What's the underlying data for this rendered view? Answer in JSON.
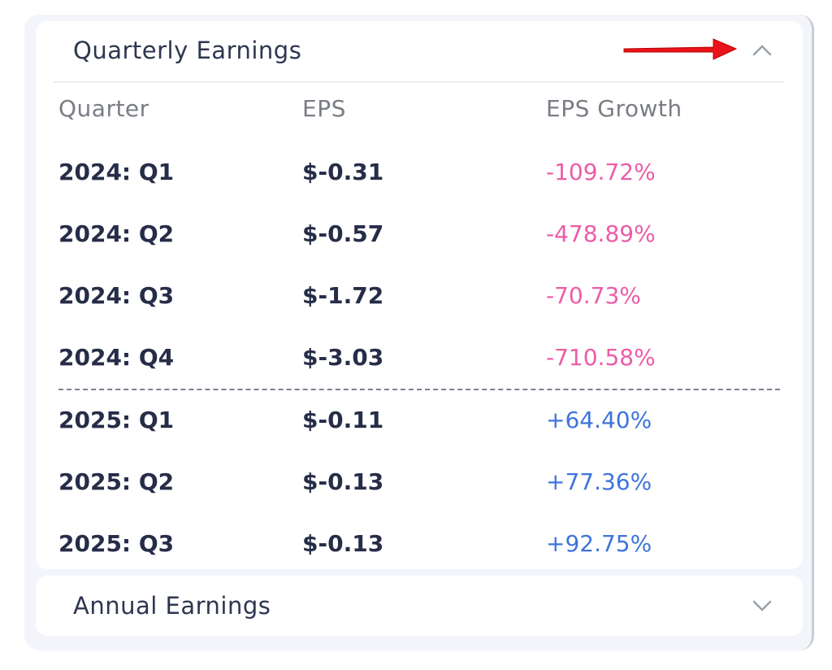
{
  "quarterly": {
    "title": "Quarterly Earnings",
    "columns": [
      "Quarter",
      "EPS",
      "EPS Growth"
    ],
    "rows": [
      [
        "2024: Q1",
        "$-0.31",
        "-109.72%"
      ],
      [
        "2024: Q2",
        "$-0.57",
        "-478.89%"
      ],
      [
        "2024: Q3",
        "$-1.72",
        "-70.73%"
      ],
      [
        "2024: Q4",
        "$-3.03",
        "-710.58%"
      ],
      [
        "2025: Q1",
        "$-0.11",
        "+64.40%"
      ],
      [
        "2025: Q2",
        "$-0.13",
        "+77.36%"
      ],
      [
        "2025: Q3",
        "$-0.13",
        "+92.75%"
      ]
    ]
  },
  "annual": {
    "title": "Annual Earnings"
  }
}
